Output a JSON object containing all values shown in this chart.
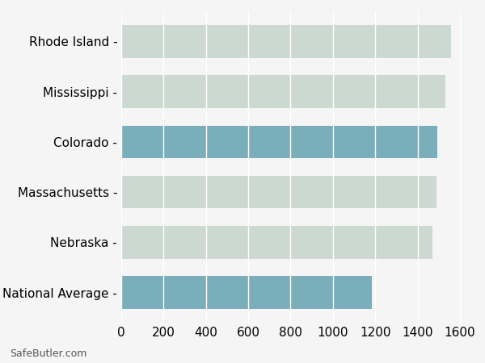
{
  "categories": [
    "Rhode Island",
    "Mississippi",
    "Colorado",
    "Massachusetts",
    "Nebraska",
    "National Average"
  ],
  "values": [
    1560,
    1530,
    1495,
    1490,
    1470,
    1185
  ],
  "bar_colors": [
    "#ccd9d0",
    "#ccd9d0",
    "#7aaebb",
    "#ccd9d0",
    "#ccd9d0",
    "#7aaebb"
  ],
  "background_color": "#f5f5f5",
  "xlim": [
    0,
    1650
  ],
  "xticks": [
    0,
    200,
    400,
    600,
    800,
    1000,
    1200,
    1400,
    1600
  ],
  "grid_color": "#ffffff",
  "tick_label_fontsize": 11,
  "footer_text": "SafeButler.com",
  "bar_height": 0.65
}
